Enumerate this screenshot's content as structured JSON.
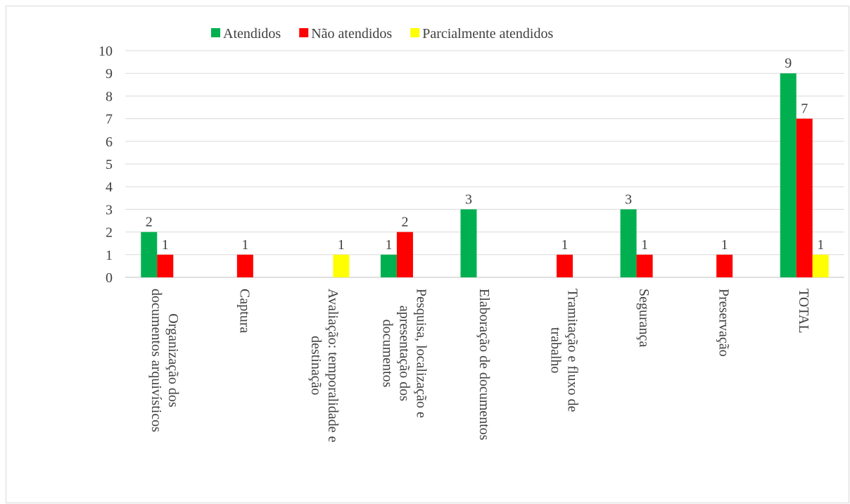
{
  "chart_data": {
    "type": "bar",
    "categories": [
      [
        "Organização dos",
        "documentos arquivísticos"
      ],
      [
        "Captura"
      ],
      [
        "Avaliação: temporalidade e",
        "destinação"
      ],
      [
        "Pesquisa, localização e",
        "apresentação dos",
        "documentos"
      ],
      [
        "Elaboração de documentos"
      ],
      [
        "Tramitação e fluxo de",
        "trabalho"
      ],
      [
        "Segurança"
      ],
      [
        "Preservação"
      ],
      [
        "TOTAL"
      ]
    ],
    "series": [
      {
        "name": "Atendidos",
        "color": "#00b050",
        "values": [
          2,
          null,
          null,
          1,
          3,
          null,
          3,
          null,
          9
        ]
      },
      {
        "name": "Não atendidos",
        "color": "#ff0000",
        "values": [
          1,
          1,
          null,
          2,
          null,
          1,
          1,
          1,
          7
        ]
      },
      {
        "name": "Parcialmente atendidos",
        "color": "#ffff00",
        "values": [
          null,
          null,
          1,
          null,
          null,
          null,
          null,
          null,
          1
        ]
      }
    ],
    "ylim": [
      0,
      10
    ],
    "yticks": [
      0,
      1,
      2,
      3,
      4,
      5,
      6,
      7,
      8,
      9,
      10
    ],
    "grid": true,
    "legend": "top"
  }
}
